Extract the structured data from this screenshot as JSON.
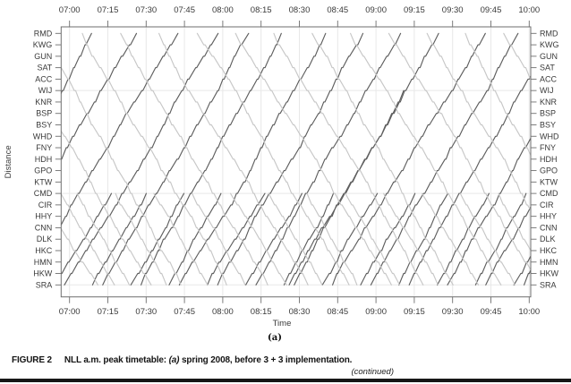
{
  "figure": {
    "caption_label": "FIGURE 2",
    "caption_pre": "NLL a.m. peak timetable: ",
    "caption_a": "(a)",
    "caption_post": " spring 2008, before 3 + 3 implementation.",
    "continued": "(continued)",
    "subfig_label": "(a)"
  },
  "chart_data": {
    "type": "line",
    "title": "",
    "xlabel": "Time",
    "ylabel": "Distance",
    "x_ticks": [
      "07:00",
      "07:15",
      "07:30",
      "07:45",
      "08:00",
      "08:15",
      "08:30",
      "08:45",
      "09:00",
      "09:15",
      "09:30",
      "09:45",
      "10:00"
    ],
    "x_range": [
      "07:00",
      "10:00"
    ],
    "grid": "on",
    "stations": [
      "RMD",
      "KWG",
      "GUN",
      "SAT",
      "ACC",
      "WIJ",
      "KNR",
      "BSP",
      "BSY",
      "WHD",
      "FNY",
      "HDH",
      "GPO",
      "KTW",
      "CMD",
      "CIR",
      "HHY",
      "CNN",
      "DLK",
      "HKC",
      "HMN",
      "HKW",
      "SRA"
    ],
    "grid_station_rows": [
      "WIJ",
      "CMD",
      "SRA"
    ],
    "run_min_per_gap": 2.2,
    "dwell_min": 0.3,
    "colors": {
      "up_line": "#5e5e5e",
      "down_line": "#c7c7c7",
      "gridline": "#e8e8e8",
      "axis": "#6e6e6e",
      "tick_label": "#3a3a3a"
    },
    "services": [
      {
        "name": "up-full",
        "origin": "SRA",
        "destination": "RMD",
        "shade": "up_line",
        "departures": [
          "06:13",
          "06:28",
          "06:43",
          "06:58",
          "07:13",
          "07:28",
          "07:43",
          "07:58",
          "08:13",
          "08:28",
          "08:43",
          "08:58",
          "09:13",
          "09:28",
          "09:43",
          "09:58"
        ]
      },
      {
        "name": "up-partial",
        "origin": "SRA",
        "destination": "CMD",
        "shade": "up_line",
        "departures": [
          "06:54",
          "07:09",
          "07:24",
          "07:39",
          "07:54",
          "08:09",
          "08:24",
          "08:39",
          "08:54",
          "09:09",
          "09:24",
          "09:39",
          "09:54"
        ]
      },
      {
        "name": "up-short-willesden",
        "origin": "SRA",
        "destination": "WIJ",
        "shade": "up_line",
        "departures": [
          "08:26"
        ]
      },
      {
        "name": "down-full",
        "origin": "RMD",
        "destination": "SRA",
        "shade": "down_line",
        "departures": [
          "06:20",
          "06:35",
          "06:50",
          "07:05",
          "07:20",
          "07:35",
          "07:50",
          "08:05",
          "08:20",
          "08:35",
          "08:50",
          "09:05",
          "09:20",
          "09:35",
          "09:50"
        ]
      },
      {
        "name": "down-partial",
        "origin": "CMD",
        "destination": "SRA",
        "shade": "down_line",
        "departures": [
          "06:48",
          "07:03",
          "07:18",
          "07:33",
          "07:48",
          "08:03",
          "08:18",
          "08:33",
          "08:48",
          "09:03",
          "09:18",
          "09:33",
          "09:48"
        ]
      }
    ]
  }
}
